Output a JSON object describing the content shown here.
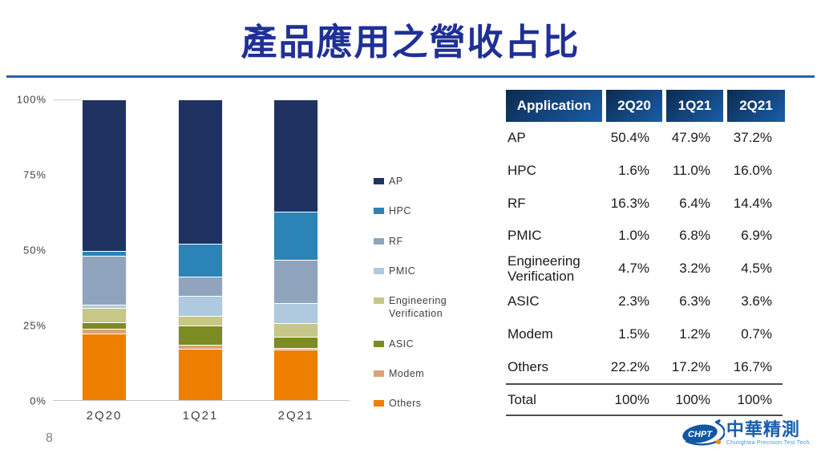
{
  "slide": {
    "title": "產品應用之營收占比",
    "page_number": "8"
  },
  "chart_data": {
    "type": "bar",
    "subtype": "stacked-percent-column",
    "categories": [
      "2Q20",
      "1Q21",
      "2Q21"
    ],
    "series": [
      {
        "name": "AP",
        "color": "#1F3262",
        "values": [
          50.4,
          47.9,
          37.2
        ]
      },
      {
        "name": "HPC",
        "color": "#2B84B8",
        "values": [
          1.6,
          11.0,
          16.0
        ]
      },
      {
        "name": "RF",
        "color": "#91A4BE",
        "values": [
          16.3,
          6.4,
          14.4
        ]
      },
      {
        "name": "PMIC",
        "color": "#AFC9DE",
        "values": [
          1.0,
          6.8,
          6.9
        ]
      },
      {
        "name": "Engineering Verification",
        "color": "#C6C788",
        "values": [
          4.7,
          3.2,
          4.5
        ]
      },
      {
        "name": "ASIC",
        "color": "#7C8B22",
        "values": [
          2.3,
          6.3,
          3.6
        ]
      },
      {
        "name": "Modem",
        "color": "#DBA377",
        "values": [
          1.5,
          1.2,
          0.7
        ]
      },
      {
        "name": "Others",
        "color": "#EE7F00",
        "values": [
          22.2,
          17.2,
          16.7
        ]
      }
    ],
    "stack_order_bottom_to_top": [
      "Others",
      "Modem",
      "ASIC",
      "Engineering Verification",
      "PMIC",
      "RF",
      "HPC",
      "AP"
    ],
    "title": "",
    "xlabel": "",
    "ylabel": "",
    "ylim": [
      0,
      100
    ],
    "y_ticks": [
      "100%",
      "75%",
      "50%",
      "25%",
      "0%"
    ],
    "grid": false,
    "legend_position": "right"
  },
  "table": {
    "headers": [
      "Application",
      "2Q20",
      "1Q21",
      "2Q21"
    ],
    "rows": [
      {
        "label": "AP",
        "values": [
          "50.4%",
          "47.9%",
          "37.2%"
        ]
      },
      {
        "label": "HPC",
        "values": [
          "1.6%",
          "11.0%",
          "16.0%"
        ]
      },
      {
        "label": "RF",
        "values": [
          "16.3%",
          "6.4%",
          "14.4%"
        ]
      },
      {
        "label": "PMIC",
        "values": [
          "1.0%",
          "6.8%",
          "6.9%"
        ]
      },
      {
        "label": "Engineering Verification",
        "values": [
          "4.7%",
          "3.2%",
          "4.5%"
        ]
      },
      {
        "label": "ASIC",
        "values": [
          "2.3%",
          "6.3%",
          "3.6%"
        ]
      },
      {
        "label": "Modem",
        "values": [
          "1.5%",
          "1.2%",
          "0.7%"
        ]
      },
      {
        "label": "Others",
        "values": [
          "22.2%",
          "17.2%",
          "16.7%"
        ]
      }
    ],
    "total_row": {
      "label": "Total",
      "values": [
        "100%",
        "100%",
        "100%"
      ]
    }
  },
  "logo": {
    "mark": "CHPT",
    "name": "中華精測",
    "tagline": "Chunghwa Precision Test Tech."
  },
  "colors": {
    "title": "#1F3096",
    "divider": "#2E5FA8",
    "table_header_gradient_start": "#0B2B50",
    "table_header_gradient_end": "#1A5DA8",
    "axis_text": "#404040",
    "body_text": "#1A1A1A",
    "page_number": "#7F7F7F",
    "logo_blue": "#1A5FAE",
    "logo_light_blue": "#2E9FD8",
    "logo_orange": "#F28C1E"
  }
}
